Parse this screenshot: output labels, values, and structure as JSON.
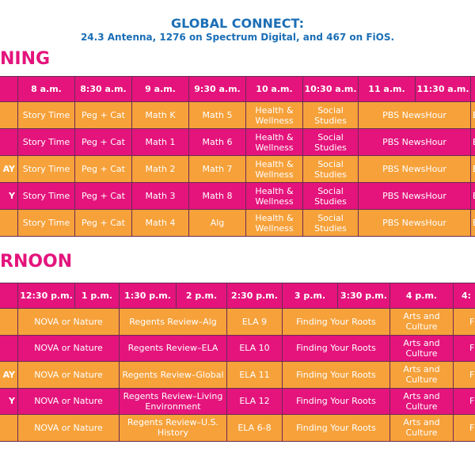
{
  "header": {
    "title": "GLOBAL CONNECT:",
    "subtitle": "24.3 Antenna, 1276 on Spectrum Digital, and 467 on FiOS."
  },
  "morning": {
    "heading": "NING",
    "columns": [
      "8 a.m.",
      "8:30 a.m.",
      "9 a.m.",
      "9:30 a.m.",
      "10 a.m.",
      "10:30 a.m.",
      "11 a.m.",
      "11:30 a.m."
    ],
    "rows": [
      {
        "cells": [
          "Story Time",
          "Peg + Cat",
          "Math K",
          "Math 5",
          "Health & Wellness",
          "Social Studies",
          "PBS NewsHour"
        ],
        "end": "E"
      },
      {
        "cells": [
          "Story Time",
          "Peg + Cat",
          "Math 1",
          "Math 6",
          "Health & Wellness",
          "Social Studies",
          "PBS NewsHour"
        ],
        "end": "E"
      },
      {
        "day": "AY",
        "cells": [
          "Story Time",
          "Peg + Cat",
          "Math 2",
          "Math 7",
          "Health & Wellness",
          "Social Studies",
          "PBS NewsHour"
        ],
        "end": "E"
      },
      {
        "day": "Y",
        "cells": [
          "Story Time",
          "Peg + Cat",
          "Math 3",
          "Math 8",
          "Health & Wellness",
          "Social Studies",
          "PBS NewsHour"
        ],
        "end": "E"
      },
      {
        "cells": [
          "Story Time",
          "Peg + Cat",
          "Math 4",
          "Alg",
          "Health & Wellness",
          "Social Studies",
          "PBS NewsHour"
        ],
        "end": "E"
      }
    ]
  },
  "afternoon": {
    "heading": "RNOON",
    "columns": [
      "12:30 p.m.",
      "1 p.m.",
      "1:30 p.m.",
      "2 p.m.",
      "2:30 p.m.",
      "3 p.m.",
      "3:30 p.m.",
      "4 p.m.",
      "4:"
    ],
    "rows": [
      {
        "cells": [
          "NOVA or Nature",
          "Regents Review–Alg",
          "ELA 9",
          "Finding Your Roots",
          "Arts and Culture"
        ],
        "end": "F"
      },
      {
        "cells": [
          "NOVA or Nature",
          "Regents Review–ELA",
          "ELA 10",
          "Finding Your Roots",
          "Arts and Culture"
        ],
        "end": "F"
      },
      {
        "day": "AY",
        "cells": [
          "NOVA or Nature",
          "Regents Review–Global",
          "ELA 11",
          "Finding Your Roots",
          "Arts and Culture"
        ],
        "end": "F"
      },
      {
        "day": "Y",
        "cells": [
          "NOVA or Nature",
          "Regents Review–Living Environment",
          "ELA 12",
          "Finding Your Roots",
          "Arts and Culture"
        ],
        "end": "F"
      },
      {
        "cells": [
          "NOVA or Nature",
          "Regents Review–U.S. History",
          "ELA 6-8",
          "Finding Your Roots",
          "Arts and Culture"
        ],
        "end": "F"
      }
    ]
  }
}
